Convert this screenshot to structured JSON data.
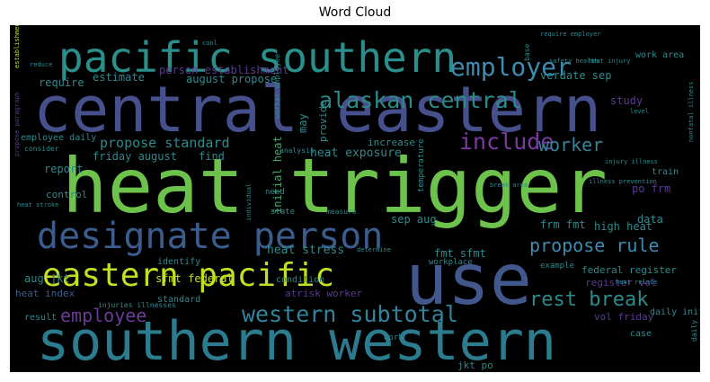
{
  "chart_data": {
    "type": "wordcloud",
    "title": "Word Cloud",
    "background": "#000000",
    "palette": [
      "#46327e",
      "#365c8d",
      "#277f8e",
      "#1fa187",
      "#4ac16d",
      "#a0da39",
      "#fde725",
      "#3f4788"
    ],
    "words": [
      {
        "text": "heat trigger",
        "weight": 1.0,
        "color": "#6cc24a"
      },
      {
        "text": "central eastern",
        "weight": 0.95,
        "color": "#46508c"
      },
      {
        "text": "use",
        "weight": 0.9,
        "color": "#42588d"
      },
      {
        "text": "southern western",
        "weight": 0.85,
        "color": "#2a7c8e"
      },
      {
        "text": "pacific southern",
        "weight": 0.7,
        "color": "#2a8f8a"
      },
      {
        "text": "designate person",
        "weight": 0.6,
        "color": "#3b5d8d"
      },
      {
        "text": "eastern pacific",
        "weight": 0.58,
        "color": "#c2df23"
      },
      {
        "text": "employer",
        "weight": 0.45,
        "color": "#3d8cb0"
      },
      {
        "text": "alaskan central",
        "weight": 0.42,
        "color": "#2c8a89"
      },
      {
        "text": "include",
        "weight": 0.42,
        "color": "#7a3aa0"
      },
      {
        "text": "western subtotal",
        "weight": 0.4,
        "color": "#33849b"
      },
      {
        "text": "worker",
        "weight": 0.32,
        "color": "#33849b"
      },
      {
        "text": "propose rule",
        "weight": 0.32,
        "color": "#3d8cb0"
      },
      {
        "text": "rest break",
        "weight": 0.32,
        "color": "#2c8a89"
      },
      {
        "text": "employee",
        "weight": 0.3,
        "color": "#6a3a95"
      },
      {
        "text": "propose standard",
        "weight": 0.25,
        "color": "#2f8a8d"
      },
      {
        "text": "heat exposure",
        "weight": 0.2,
        "color": "#2f8a8d"
      },
      {
        "text": "heat stress",
        "weight": 0.19,
        "color": "#2f8a8d"
      },
      {
        "text": "initial heat",
        "weight": 0.19,
        "color": "#4aa36a"
      },
      {
        "text": "person establishment",
        "weight": 0.18,
        "color": "#5a3a8e"
      },
      {
        "text": "estimate",
        "weight": 0.18,
        "color": "#2f8a8d"
      },
      {
        "text": "august propose",
        "weight": 0.17,
        "color": "#2f8a8d"
      },
      {
        "text": "verdate sep",
        "weight": 0.17,
        "color": "#2f8a8d"
      },
      {
        "text": "study",
        "weight": 0.17,
        "color": "#5a3a8e"
      },
      {
        "text": "require",
        "weight": 0.17,
        "color": "#2f8a8d"
      },
      {
        "text": "may",
        "weight": 0.17,
        "color": "#2f8a8d"
      },
      {
        "text": "provide",
        "weight": 0.16,
        "color": "#2f8a8d"
      },
      {
        "text": "friday august",
        "weight": 0.17,
        "color": "#2f8a8d"
      },
      {
        "text": "find",
        "weight": 0.17,
        "color": "#2f8a8d"
      },
      {
        "text": "report",
        "weight": 0.17,
        "color": "#2f8a8d"
      },
      {
        "text": "increase",
        "weight": 0.16,
        "color": "#2f8a8d"
      },
      {
        "text": "po frm",
        "weight": 0.17,
        "color": "#5a3a8e"
      },
      {
        "text": "sep aug",
        "weight": 0.16,
        "color": "#2f8a8d"
      },
      {
        "text": "data",
        "weight": 0.16,
        "color": "#2f8a8d"
      },
      {
        "text": "frm fmt",
        "weight": 0.16,
        "color": "#2f8a8d"
      },
      {
        "text": "high heat",
        "weight": 0.16,
        "color": "#2f8a8d"
      },
      {
        "text": "fmt sfmt",
        "weight": 0.16,
        "color": "#2f8a8d"
      },
      {
        "text": "sfmt federal",
        "weight": 0.16,
        "color": "#c2df23"
      },
      {
        "text": "aug jkt",
        "weight": 0.16,
        "color": "#2f8a8d"
      },
      {
        "text": "federal register",
        "weight": 0.16,
        "color": "#2f8a8d"
      },
      {
        "text": "register vol",
        "weight": 0.16,
        "color": "#5a3a8e"
      },
      {
        "text": "atrisk worker",
        "weight": 0.15,
        "color": "#5a3a8e"
      },
      {
        "text": "vol friday",
        "weight": 0.15,
        "color": "#5a3a8e"
      },
      {
        "text": "jkt po",
        "weight": 0.15,
        "color": "#2f8a8d"
      },
      {
        "text": "heat index",
        "weight": 0.15,
        "color": "#3b5d8d"
      },
      {
        "text": "control",
        "weight": 0.14,
        "color": "#2f8a8d"
      },
      {
        "text": "employee daily",
        "weight": 0.12,
        "color": "#2f8a8d"
      },
      {
        "text": "identify",
        "weight": 0.13,
        "color": "#2f8a8d"
      },
      {
        "text": "condition",
        "weight": 0.13,
        "color": "#2f8a8d"
      },
      {
        "text": "standard",
        "weight": 0.13,
        "color": "#2f8a8d"
      },
      {
        "text": "result",
        "weight": 0.13,
        "color": "#2f8a8d"
      },
      {
        "text": "temperature",
        "weight": 0.13,
        "color": "#2f8a8d"
      },
      {
        "text": "workplace",
        "weight": 0.12,
        "color": "#2f8a8d"
      },
      {
        "text": "state",
        "weight": 0.12,
        "color": "#2f8a8d"
      },
      {
        "text": "need",
        "weight": 0.12,
        "color": "#2f8a8d"
      },
      {
        "text": "example",
        "weight": 0.12,
        "color": "#2f8a8d"
      },
      {
        "text": "case",
        "weight": 0.12,
        "color": "#2f8a8d"
      },
      {
        "text": "daily initial",
        "weight": 0.12,
        "color": "#2f8a8d"
      },
      {
        "text": "work",
        "weight": 0.12,
        "color": "#2f8a8d"
      },
      {
        "text": "train",
        "weight": 0.12,
        "color": "#2f8a8d"
      },
      {
        "text": "work area",
        "weight": 0.12,
        "color": "#2f8a8d"
      },
      {
        "text": "consider",
        "weight": 0.1,
        "color": "#2f8a8d"
      },
      {
        "text": "analysis",
        "weight": 0.1,
        "color": "#2f8a8d"
      },
      {
        "text": "worker employee",
        "weight": 0.1,
        "color": "#2f8a8d"
      },
      {
        "text": "measure",
        "weight": 0.1,
        "color": "#2f8a8d"
      },
      {
        "text": "determine",
        "weight": 0.1,
        "color": "#2f8a8d"
      },
      {
        "text": "break area",
        "weight": 0.1,
        "color": "#2f8a8d"
      },
      {
        "text": "injuries illnesses",
        "weight": 0.1,
        "color": "#2f8a8d"
      },
      {
        "text": "heat stroke",
        "weight": 0.1,
        "color": "#2f8a8d"
      },
      {
        "text": "individual",
        "weight": 0.1,
        "color": "#2f8a8d"
      },
      {
        "text": "safety health",
        "weight": 0.1,
        "color": "#2f8a8d"
      },
      {
        "text": "heat injury",
        "weight": 0.1,
        "color": "#2f8a8d"
      },
      {
        "text": "require employer",
        "weight": 0.1,
        "color": "#2f8a8d"
      },
      {
        "text": "illness prevention",
        "weight": 0.1,
        "color": "#2f8a8d"
      },
      {
        "text": "injury illness",
        "weight": 0.1,
        "color": "#2f8a8d"
      },
      {
        "text": "heat relate",
        "weight": 0.1,
        "color": "#2f8a8d"
      },
      {
        "text": "nonfatal illness",
        "weight": 0.1,
        "color": "#2f8a8d"
      },
      {
        "text": "level",
        "weight": 0.1,
        "color": "#2f8a8d"
      },
      {
        "text": "base",
        "weight": 0.1,
        "color": "#2f8a8d"
      },
      {
        "text": "reduce",
        "weight": 0.1,
        "color": "#2f8a8d"
      },
      {
        "text": "cool",
        "weight": 0.1,
        "color": "#2f8a8d"
      },
      {
        "text": "establishment one",
        "weight": 0.1,
        "color": "#c2df23"
      },
      {
        "text": "propose paragraph",
        "weight": 0.1,
        "color": "#5a3a8e"
      },
      {
        "text": "daily",
        "weight": 0.1,
        "color": "#2f8a8d"
      }
    ]
  }
}
